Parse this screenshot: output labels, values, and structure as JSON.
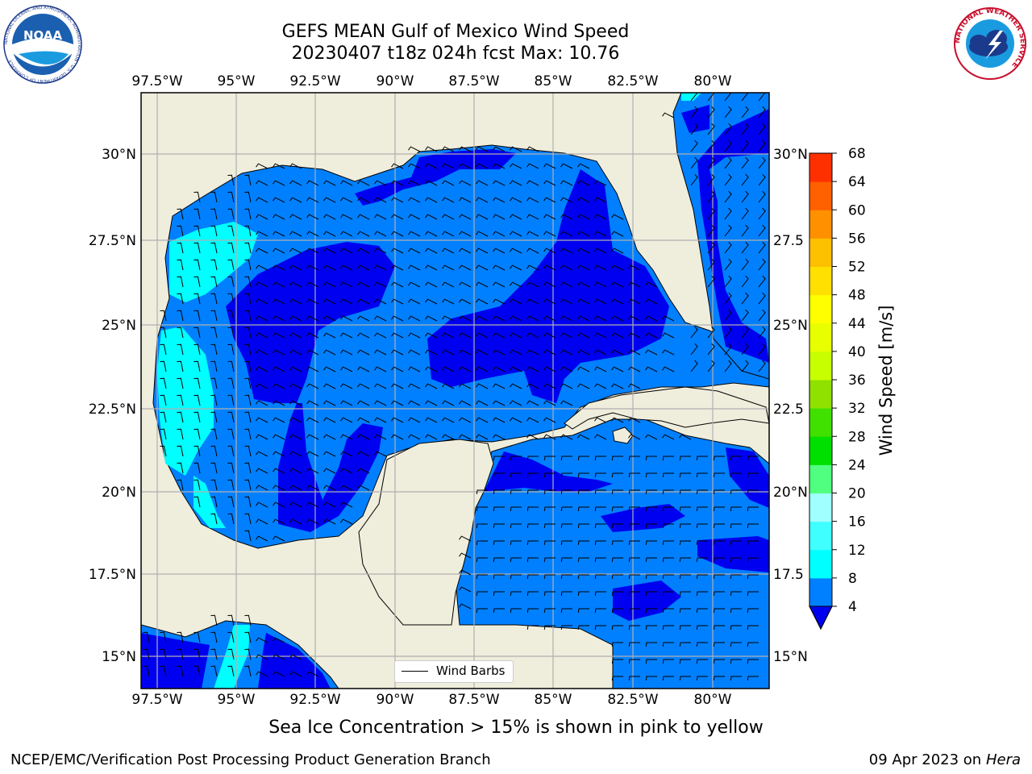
{
  "header": {
    "title_line1": "GEFS MEAN Gulf of Mexico Wind Speed",
    "title_line2": "20230407 t18z 024h fcst   Max: 10.76"
  },
  "logos": {
    "noaa_text": "NOAA",
    "noaa_ring_text": "NATIONAL OCEANIC AND ATMOSPHERIC ADMINISTRATION · U.S. DEPARTMENT OF COMMERCE",
    "nws_ring_text": "NATIONAL WEATHER SERVICE"
  },
  "map": {
    "lon_labels": [
      "97.5°W",
      "95°W",
      "92.5°W",
      "90°W",
      "87.5°W",
      "85°W",
      "82.5°W",
      "80°W"
    ],
    "lat_labels_left": [
      "30°N",
      "27.5°N",
      "25°N",
      "22.5°N",
      "20°N",
      "17.5°N",
      "15°N"
    ],
    "lat_labels_right": [
      "30°N",
      "27.5",
      "25°N",
      "22.5",
      "20°N",
      "17.5",
      "15°N"
    ],
    "legend_label": "Wind Barbs",
    "colors": {
      "land": "#efeddc",
      "ocean_4_8": "#0080ff",
      "ocean_lt_4": "#0000f0",
      "ocean_8_12": "#00ffff",
      "grid": "#b0b0b0"
    }
  },
  "colorbar": {
    "label": "Wind Speed [m/s]",
    "ticks": [
      "4",
      "8",
      "12",
      "16",
      "20",
      "24",
      "28",
      "32",
      "36",
      "40",
      "44",
      "48",
      "52",
      "56",
      "60",
      "64",
      "68"
    ],
    "colors": [
      "#0080ff",
      "#00ffff",
      "#40ffff",
      "#a0ffff",
      "#50ff80",
      "#00e000",
      "#40e000",
      "#90e000",
      "#c8ff00",
      "#e8ff00",
      "#ffff00",
      "#ffe000",
      "#ffc000",
      "#ff9000",
      "#ff6000",
      "#ff3000"
    ],
    "extend_color": "#0000f0"
  },
  "footer": {
    "subtitle": "Sea Ice Concentration > 15% is shown in pink to yellow",
    "left": "NCEP/EMC/Verification Post Processing Product Generation Branch",
    "right_date": "09 Apr 2023 on",
    "right_host": "Hera"
  }
}
